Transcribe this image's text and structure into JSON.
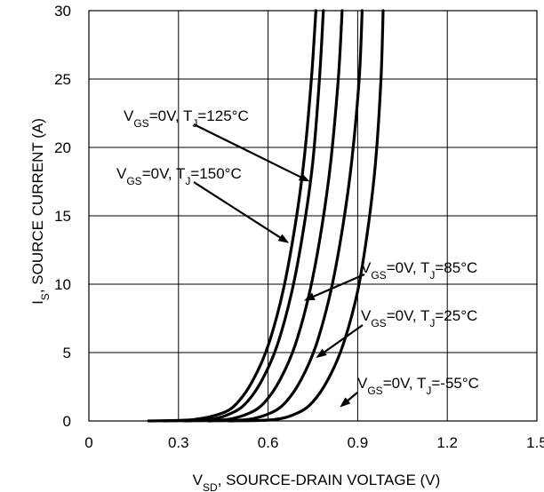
{
  "chart_data": {
    "type": "line",
    "title": "",
    "xlabel": {
      "main": "V",
      "sub": "SD",
      "rest": ", SOURCE-DRAIN VOLTAGE (V)"
    },
    "ylabel": {
      "main": "I",
      "sub": "S",
      "rest": ", SOURCE CURRENT (A)"
    },
    "xlim": [
      0,
      1.5
    ],
    "ylim": [
      0,
      30
    ],
    "xticks": [
      "0",
      "0.3",
      "0.6",
      "0.9",
      "1.2",
      "1.5"
    ],
    "yticks": [
      "0",
      "5",
      "10",
      "15",
      "20",
      "25",
      "30"
    ],
    "grid": true,
    "line_color": "#000000",
    "series": [
      {
        "name": "VGS=0V, TJ=150°C",
        "x": [
          0.2,
          0.35,
          0.45,
          0.5,
          0.55,
          0.6,
          0.65,
          0.69,
          0.72,
          0.745,
          0.76
        ],
        "y": [
          0,
          0.1,
          0.6,
          1.4,
          3,
          5.5,
          9.5,
          14.2,
          19,
          25,
          30
        ]
      },
      {
        "name": "VGS=0V, TJ=125°C",
        "x": [
          0.25,
          0.4,
          0.48,
          0.53,
          0.58,
          0.63,
          0.68,
          0.72,
          0.75,
          0.772,
          0.785
        ],
        "y": [
          0,
          0.1,
          0.6,
          1.4,
          3,
          5.5,
          9.5,
          14.2,
          19,
          25,
          30
        ]
      },
      {
        "name": "VGS=0V, TJ=85°C",
        "x": [
          0.32,
          0.46,
          0.54,
          0.59,
          0.64,
          0.69,
          0.74,
          0.78,
          0.81,
          0.835,
          0.848
        ],
        "y": [
          0,
          0.1,
          0.6,
          1.4,
          3,
          5.5,
          9.5,
          14.2,
          19,
          25,
          30
        ]
      },
      {
        "name": "VGS=0V, TJ=25°C",
        "x": [
          0.4,
          0.53,
          0.61,
          0.66,
          0.71,
          0.76,
          0.81,
          0.85,
          0.88,
          0.905,
          0.915
        ],
        "y": [
          0,
          0.1,
          0.6,
          1.4,
          3,
          5.5,
          9.5,
          14.2,
          19,
          25,
          30
        ]
      },
      {
        "name": "VGS=0V, TJ=-55°C",
        "x": [
          0.47,
          0.62,
          0.7,
          0.75,
          0.8,
          0.85,
          0.9,
          0.935,
          0.96,
          0.978,
          0.985
        ],
        "y": [
          0,
          0.1,
          0.6,
          1.4,
          3,
          5.5,
          9.5,
          14.2,
          19,
          25,
          30
        ]
      }
    ],
    "annotations": [
      {
        "v": "V",
        "vsub": "GS",
        "mid": "=0V, T",
        "tsub": "J",
        "end": "=125°C",
        "target": [
          0.74,
          17.5
        ]
      },
      {
        "v": "V",
        "vsub": "GS",
        "mid": "=0V, T",
        "tsub": "J",
        "end": "=150°C",
        "target": [
          0.67,
          13
        ]
      },
      {
        "v": "V",
        "vsub": "GS",
        "mid": "=0V, T",
        "tsub": "J",
        "end": "=85°C",
        "target": [
          0.72,
          8.8
        ]
      },
      {
        "v": "V",
        "vsub": "GS",
        "mid": "=0V, T",
        "tsub": "J",
        "end": "=25°C",
        "target": [
          0.76,
          4.6
        ]
      },
      {
        "v": "V",
        "vsub": "GS",
        "mid": "=0V, T",
        "tsub": "J",
        "end": "=-55°C",
        "target": [
          0.84,
          1.0
        ]
      }
    ]
  }
}
